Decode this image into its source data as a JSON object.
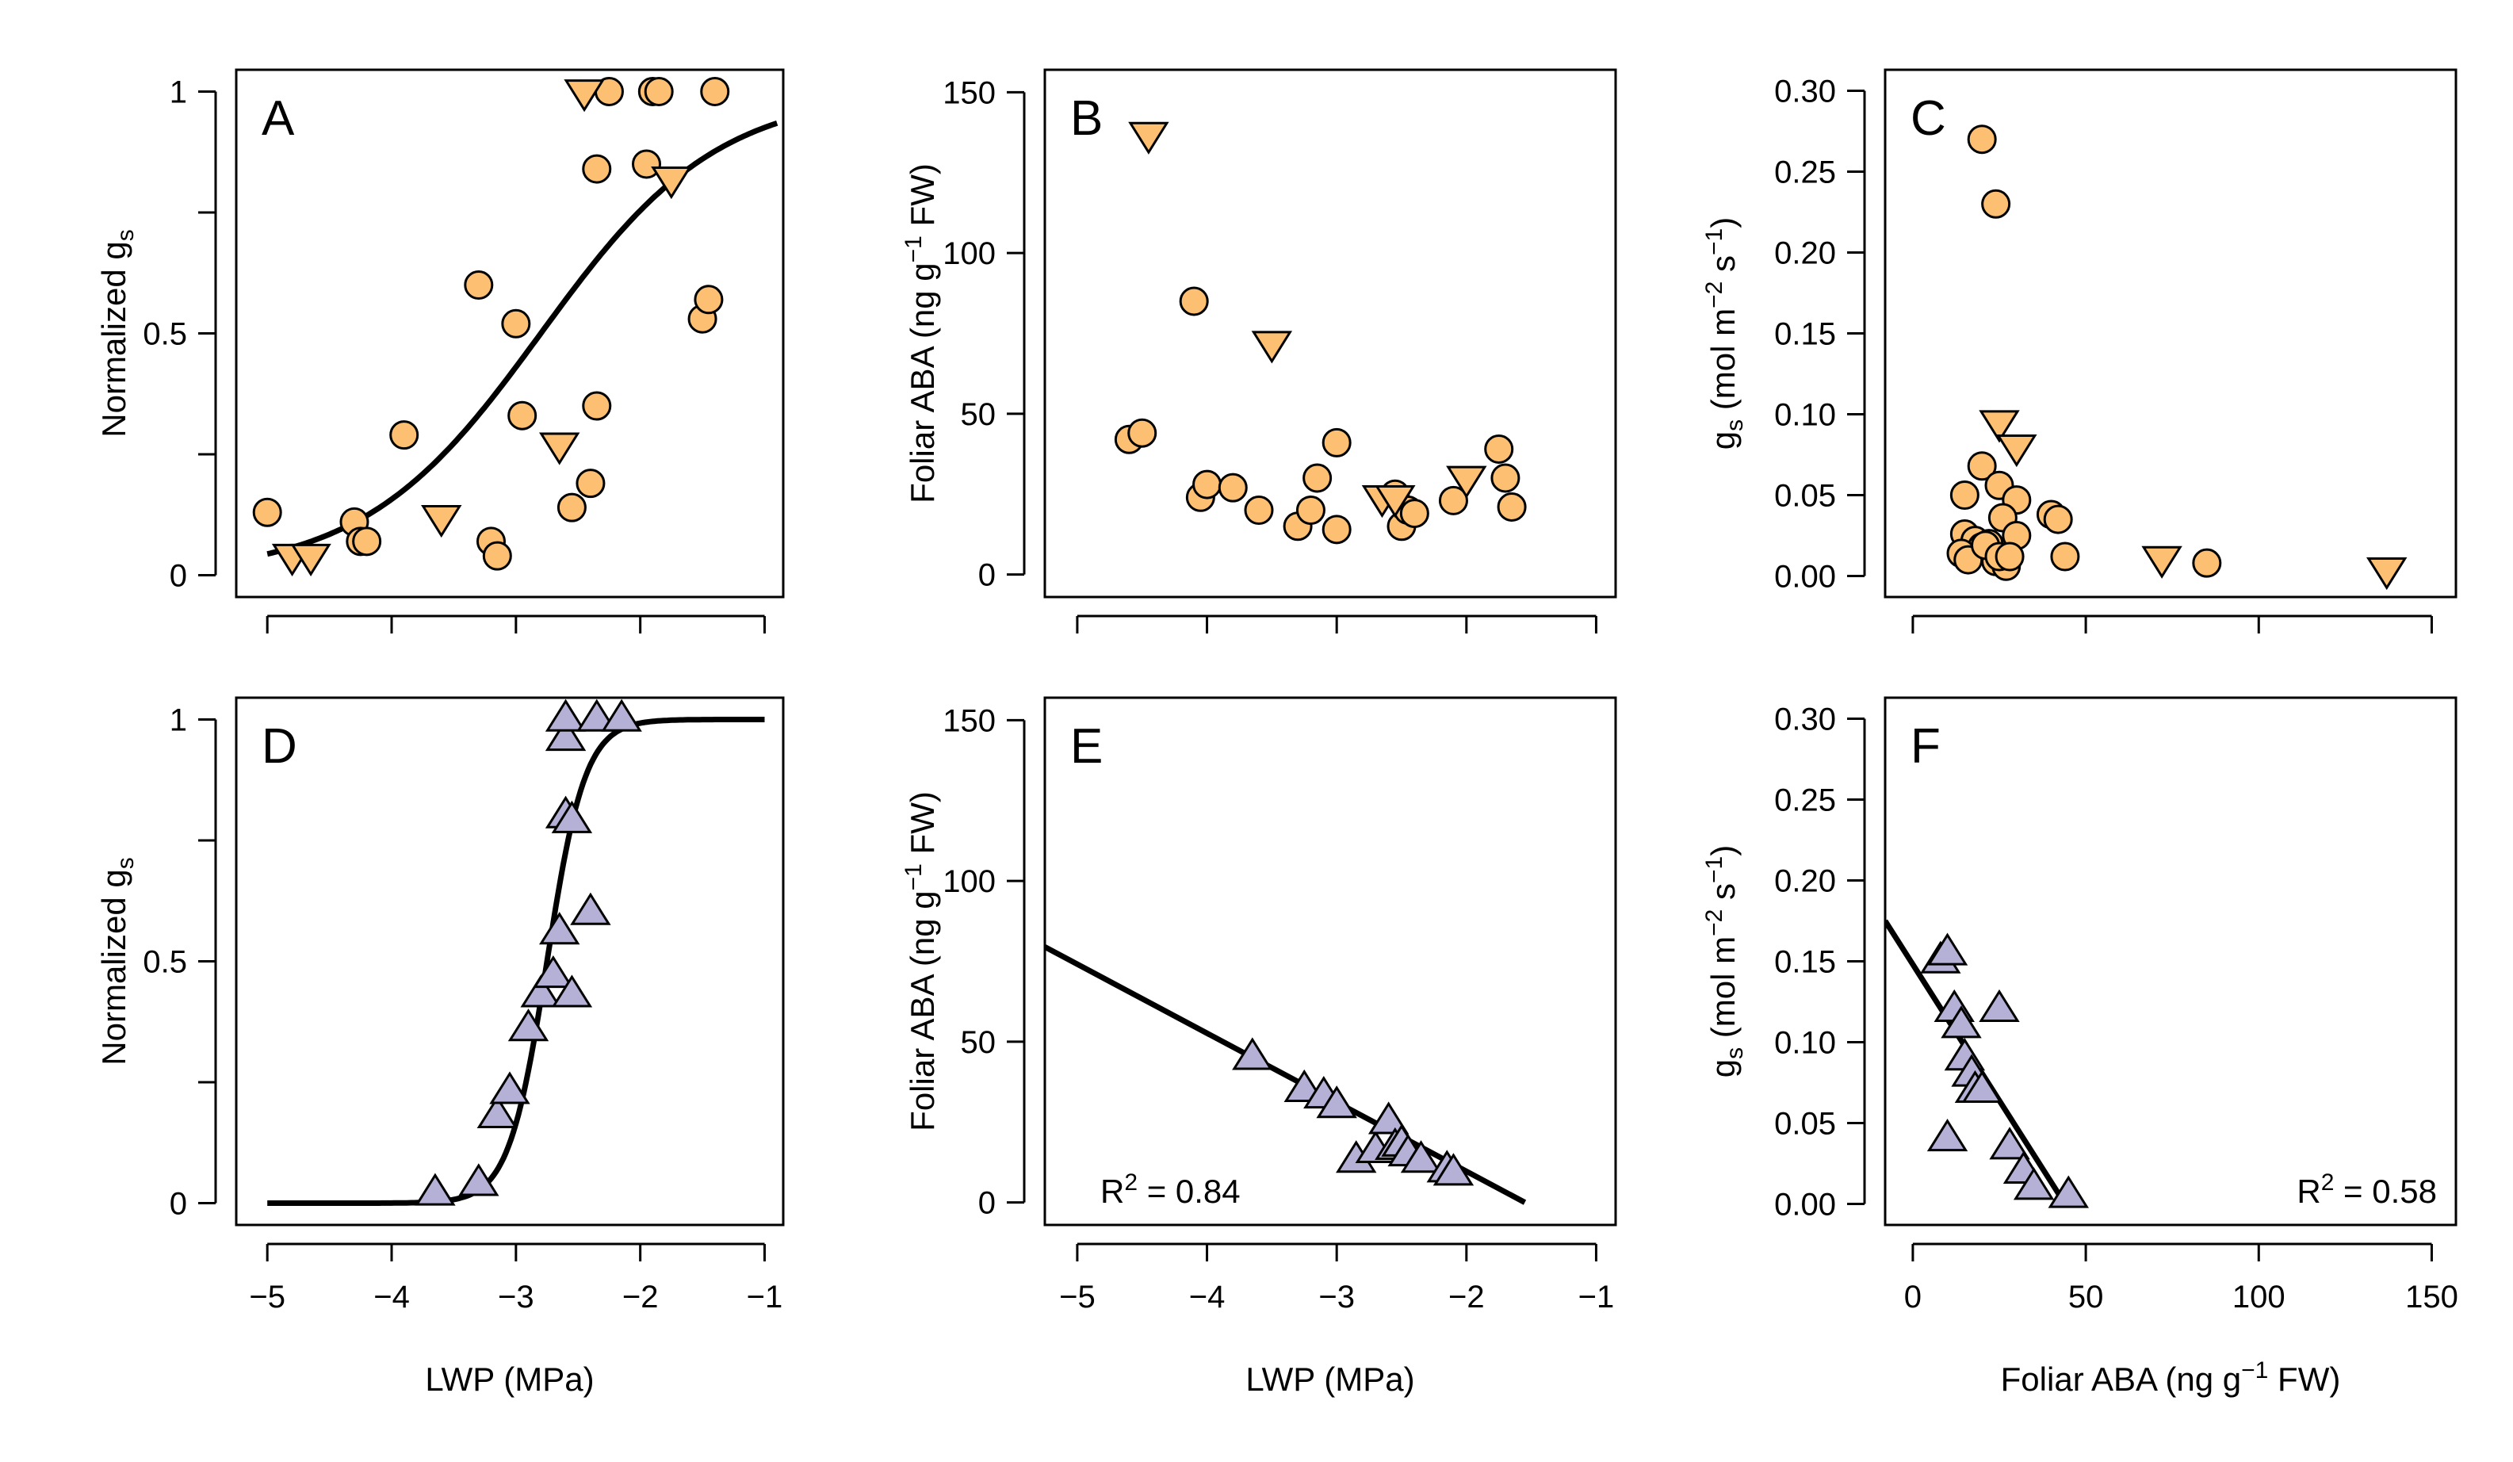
{
  "colors": {
    "orange": "#FDBF72",
    "purple": "#B4B0D6",
    "stroke": "#000000"
  },
  "labels": {
    "normalized_g": "Normalized g",
    "normalized_sub": "s"
  },
  "chart_data": [
    {
      "panel": "A",
      "type": "scatter",
      "xlim": [
        -5.25,
        -0.85
      ],
      "ylim": [
        -0.045,
        1.045
      ],
      "xticks": [
        -5,
        -4,
        -3,
        -2,
        -1
      ],
      "xtick_labels": false,
      "yticks": [
        0,
        0.5,
        1
      ],
      "minor_yticks": [
        0.25,
        0.75
      ],
      "ytick_labels": [
        "0",
        "0.5",
        "1"
      ],
      "ylabel": "Normalized gs",
      "series": [
        {
          "name": "circles",
          "marker": "circle",
          "color": "orange",
          "x": [
            -5.0,
            -4.3,
            -4.25,
            -4.2,
            -3.9,
            -3.3,
            -3.2,
            -3.15,
            -3.0,
            -2.95,
            -2.55,
            -2.4,
            -2.35,
            -2.35,
            -2.25,
            -1.95,
            -1.9,
            -1.85,
            -1.5,
            -1.45,
            -1.4
          ],
          "y": [
            0.13,
            0.11,
            0.07,
            0.07,
            0.29,
            0.6,
            0.07,
            0.04,
            0.52,
            0.33,
            0.14,
            0.19,
            0.35,
            0.84,
            1.0,
            0.85,
            1.0,
            1.0,
            0.53,
            0.57,
            1.0
          ]
        },
        {
          "name": "triangles-down",
          "marker": "tri-down",
          "color": "orange",
          "x": [
            -4.8,
            -4.65,
            -3.6,
            -2.65,
            -2.45,
            -1.75
          ],
          "y": [
            0.04,
            0.04,
            0.12,
            0.27,
            1.0,
            0.82
          ]
        }
      ],
      "curve": {
        "type": "logistic",
        "x0": -2.8,
        "k": 1.4,
        "ymax": 1.0,
        "x_range": [
          -5.0,
          -0.9
        ]
      }
    },
    {
      "panel": "B",
      "type": "scatter",
      "xlim": [
        -5.25,
        -0.85
      ],
      "ylim": [
        -7,
        157
      ],
      "xticks": [
        -5,
        -4,
        -3,
        -2,
        -1
      ],
      "xtick_labels": false,
      "yticks": [
        0,
        50,
        100,
        150
      ],
      "ytick_labels": [
        "0",
        "50",
        "100",
        "150"
      ],
      "ylabel": "Foliar ABA (ng g−1 FW)",
      "series": [
        {
          "name": "circles",
          "marker": "circle",
          "color": "orange",
          "x": [
            -4.6,
            -4.5,
            -4.1,
            -4.05,
            -4.0,
            -3.8,
            -3.6,
            -3.3,
            -3.2,
            -3.15,
            -3.0,
            -3.0,
            -2.55,
            -2.5,
            -2.45,
            -2.4,
            -2.1,
            -1.75,
            -1.7,
            -1.65
          ],
          "y": [
            42,
            44,
            85,
            24,
            28,
            27,
            20,
            15,
            20,
            30,
            14,
            41,
            25,
            15,
            20,
            19,
            23,
            39,
            30,
            21
          ]
        },
        {
          "name": "triangles-down",
          "marker": "tri-down",
          "color": "orange",
          "x": [
            -4.45,
            -3.5,
            -2.65,
            -2.55,
            -2.0
          ],
          "y": [
            137,
            72,
            24,
            24,
            30
          ]
        }
      ]
    },
    {
      "panel": "C",
      "type": "scatter",
      "xlim": [
        -8,
        157
      ],
      "ylim": [
        -0.013,
        0.313
      ],
      "xticks": [
        0,
        50,
        100,
        150
      ],
      "xtick_labels": false,
      "yticks": [
        0,
        0.05,
        0.1,
        0.15,
        0.2,
        0.25,
        0.3
      ],
      "ytick_labels": [
        "0.00",
        "0.05",
        "0.10",
        "0.15",
        "0.20",
        "0.25",
        "0.30"
      ],
      "ylabel": "gs (mol m−2 s−1)",
      "series": [
        {
          "name": "circles",
          "marker": "circle",
          "color": "orange",
          "x": [
            20,
            24,
            15,
            20,
            25,
            30,
            26,
            15,
            17,
            18,
            20,
            22,
            24,
            27,
            30,
            14,
            16,
            21,
            25,
            28,
            40,
            42,
            44,
            85
          ],
          "y": [
            0.27,
            0.23,
            0.05,
            0.068,
            0.056,
            0.047,
            0.036,
            0.026,
            0.015,
            0.022,
            0.018,
            0.02,
            0.009,
            0.006,
            0.025,
            0.014,
            0.01,
            0.019,
            0.012,
            0.012,
            0.038,
            0.035,
            0.012,
            0.008
          ]
        },
        {
          "name": "triangles-down",
          "marker": "tri-down",
          "color": "orange",
          "x": [
            25,
            30,
            72,
            137
          ],
          "y": [
            0.095,
            0.08,
            0.011,
            0.004
          ]
        }
      ]
    },
    {
      "panel": "D",
      "type": "scatter",
      "xlim": [
        -5.25,
        -0.85
      ],
      "ylim": [
        -0.045,
        1.045
      ],
      "xticks": [
        -5,
        -4,
        -3,
        -2,
        -1
      ],
      "xtick_labels": [
        "−5",
        "−4",
        "−3",
        "−2",
        "−1"
      ],
      "yticks": [
        0,
        0.5,
        1
      ],
      "minor_yticks": [
        0.25,
        0.75
      ],
      "ytick_labels": [
        "0",
        "0.5",
        "1"
      ],
      "xlabel": "LWP (MPa)",
      "ylabel": "Normalized gs",
      "series": [
        {
          "name": "triangles-up",
          "marker": "tri-up",
          "color": "purple",
          "x": [
            -3.65,
            -3.3,
            -3.15,
            -3.05,
            -2.9,
            -2.8,
            -2.7,
            -2.65,
            -2.6,
            -2.6,
            -2.6,
            -2.55,
            -2.55,
            -2.4,
            -2.35,
            -2.15
          ],
          "y": [
            0.02,
            0.04,
            0.18,
            0.23,
            0.36,
            0.43,
            0.47,
            0.56,
            0.8,
            0.96,
            1.0,
            0.43,
            0.79,
            0.6,
            1.0,
            1.0
          ]
        }
      ],
      "curve": {
        "type": "logistic",
        "x0": -2.75,
        "k": 6.5,
        "ymax": 1.0,
        "x_range": [
          -5.0,
          -1.0
        ]
      }
    },
    {
      "panel": "E",
      "type": "scatter",
      "xlim": [
        -5.25,
        -0.85
      ],
      "ylim": [
        -7,
        157
      ],
      "xticks": [
        -5,
        -4,
        -3,
        -2,
        -1
      ],
      "xtick_labels": [
        "−5",
        "−4",
        "−3",
        "−2",
        "−1"
      ],
      "yticks": [
        0,
        50,
        100,
        150
      ],
      "ytick_labels": [
        "0",
        "50",
        "100",
        "150"
      ],
      "xlabel": "LWP (MPa)",
      "ylabel": "Foliar ABA (ng g−1 FW)",
      "annotation": "R2 = 0.84",
      "series": [
        {
          "name": "triangles-up",
          "marker": "tri-up",
          "color": "purple",
          "x": [
            -3.65,
            -3.25,
            -3.1,
            -3.0,
            -2.85,
            -2.7,
            -2.6,
            -2.55,
            -2.5,
            -2.45,
            -2.35,
            -2.15,
            -2.1
          ],
          "y": [
            45,
            35,
            33,
            30,
            13,
            16,
            25,
            17,
            18,
            15,
            13,
            10,
            9
          ]
        }
      ],
      "curve": {
        "type": "linear",
        "points": [
          [
            -5.25,
            79.5
          ],
          [
            -1.55,
            0
          ]
        ]
      }
    },
    {
      "panel": "F",
      "type": "scatter",
      "xlim": [
        -8,
        157
      ],
      "ylim": [
        -0.013,
        0.313
      ],
      "xticks": [
        0,
        50,
        100,
        150
      ],
      "xtick_labels": [
        "0",
        "50",
        "100",
        "150"
      ],
      "yticks": [
        0,
        0.05,
        0.1,
        0.15,
        0.2,
        0.25,
        0.3
      ],
      "ytick_labels": [
        "0.00",
        "0.05",
        "0.10",
        "0.15",
        "0.20",
        "0.25",
        "0.30"
      ],
      "xlabel": "Foliar ABA (ng g−1 FW)",
      "ylabel": "gs (mol m−2 s−1)",
      "annotation": "R2 = 0.58",
      "series": [
        {
          "name": "triangles-up",
          "marker": "tri-up",
          "color": "purple",
          "x": [
            8,
            10,
            12,
            14,
            15,
            17,
            18,
            20,
            25,
            10,
            28,
            32,
            35,
            45
          ],
          "y": [
            0.15,
            0.155,
            0.12,
            0.11,
            0.09,
            0.08,
            0.07,
            0.07,
            0.12,
            0.04,
            0.035,
            0.02,
            0.01,
            0.005
          ]
        }
      ],
      "curve": {
        "type": "linear",
        "points": [
          [
            -8,
            0.175
          ],
          [
            44,
            0
          ]
        ]
      }
    }
  ]
}
